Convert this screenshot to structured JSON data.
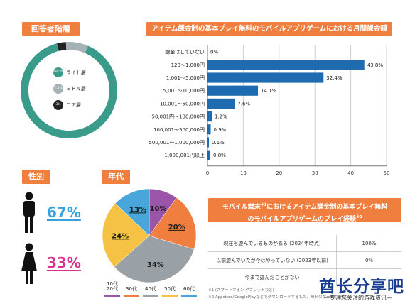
{
  "headers": {
    "respondents": "回答者階層",
    "monthly_spend": "アイテム課金制の基本プレイ無料のモバイルアプリゲームにおける月間課金額",
    "gender": "性別",
    "age": "年代",
    "experience_line1": "モバイル端末",
    "experience_sup1": "※1",
    "experience_line1b": "におけるアイテム課金制の基本プレイ無料",
    "experience_line2": "のモバイルアプリゲームのプレイ経験",
    "experience_sup2": "※2"
  },
  "colors": {
    "header_orange": "#f07e3f",
    "bar_blue": "#1f6bb0",
    "donut_teal": "#3a9b8a",
    "donut_gray": "#a3b3b5",
    "donut_dark": "#222222",
    "male_blue": "#3aa0d8",
    "female_magenta": "#d6338f",
    "watermark": "#1a3d8f"
  },
  "chart_data": [
    {
      "type": "pie",
      "title": "回答者階層",
      "style": "donut",
      "series": [
        {
          "name": "ライト層",
          "value": 89.5,
          "label": "89.5%"
        },
        {
          "name": "ミドル層",
          "value": 7.5,
          "label": "7.5%"
        },
        {
          "name": "コア層",
          "value": 3,
          "label": "3%"
        }
      ]
    },
    {
      "type": "bar",
      "orientation": "horizontal",
      "title": "アイテム課金制の基本プレイ無料のモバイルアプリゲームにおける月間課金額",
      "categories": [
        "課金はしていない",
        "120～1,000円",
        "1,001～5,000円",
        "5,001～10,000円",
        "10,001～50,000円",
        "50,001円～100,000円",
        "100,001～500,000円",
        "500,001～1,000,000円",
        "1,000,001円以上"
      ],
      "values": [
        0,
        43.8,
        32.4,
        14.1,
        7.6,
        1.2,
        0.9,
        0.1,
        0.8
      ],
      "value_labels": [
        "0%",
        "43.8%",
        "32.4%",
        "14.1%",
        "7.6%",
        "1.2%",
        "0.9%",
        "0.1%",
        "0.8%"
      ],
      "xlim": [
        0,
        50
      ],
      "xticks": [
        "0",
        "10",
        "20",
        "30",
        "40",
        "50"
      ],
      "grid": true
    },
    {
      "type": "bar",
      "title": "性別",
      "style": "pictogram",
      "categories": [
        "male",
        "female"
      ],
      "values": [
        67,
        33
      ],
      "value_labels": [
        "67%",
        "33%"
      ]
    },
    {
      "type": "pie",
      "title": "年代",
      "series": [
        {
          "name": "10代 20代",
          "value": 10,
          "label": "10%",
          "color": "#9b55a8"
        },
        {
          "name": "30代",
          "value": 20,
          "label": "20%",
          "color": "#f07e3f"
        },
        {
          "name": "40代",
          "value": 34,
          "label": "34%",
          "color": "#9aa1a6"
        },
        {
          "name": "50代",
          "value": 24,
          "label": "24%",
          "color": "#f6c244"
        },
        {
          "name": "60代",
          "value": 13,
          "label": "13%",
          "color": "#49a6db"
        }
      ],
      "legend": "bottom"
    },
    {
      "type": "table",
      "rows": [
        {
          "question": "現在も遊んでいるものがある (2024年時点)",
          "value": "100%"
        },
        {
          "question": "以前遊んでいたが今はやっていない (2023年以前)",
          "value": "0%"
        },
        {
          "question": "今まで遊んだことがない",
          "value": ""
        }
      ]
    }
  ],
  "notes": [
    "※1 (スマートフォン タブレットなど)",
    "※2 Appstore/GooglePlayなどでダウンロードするもの。無料のゲームも含む"
  ],
  "watermark": {
    "title": "酋长分享吧",
    "subtitle": "—专注您关注的游戏资讯—"
  }
}
